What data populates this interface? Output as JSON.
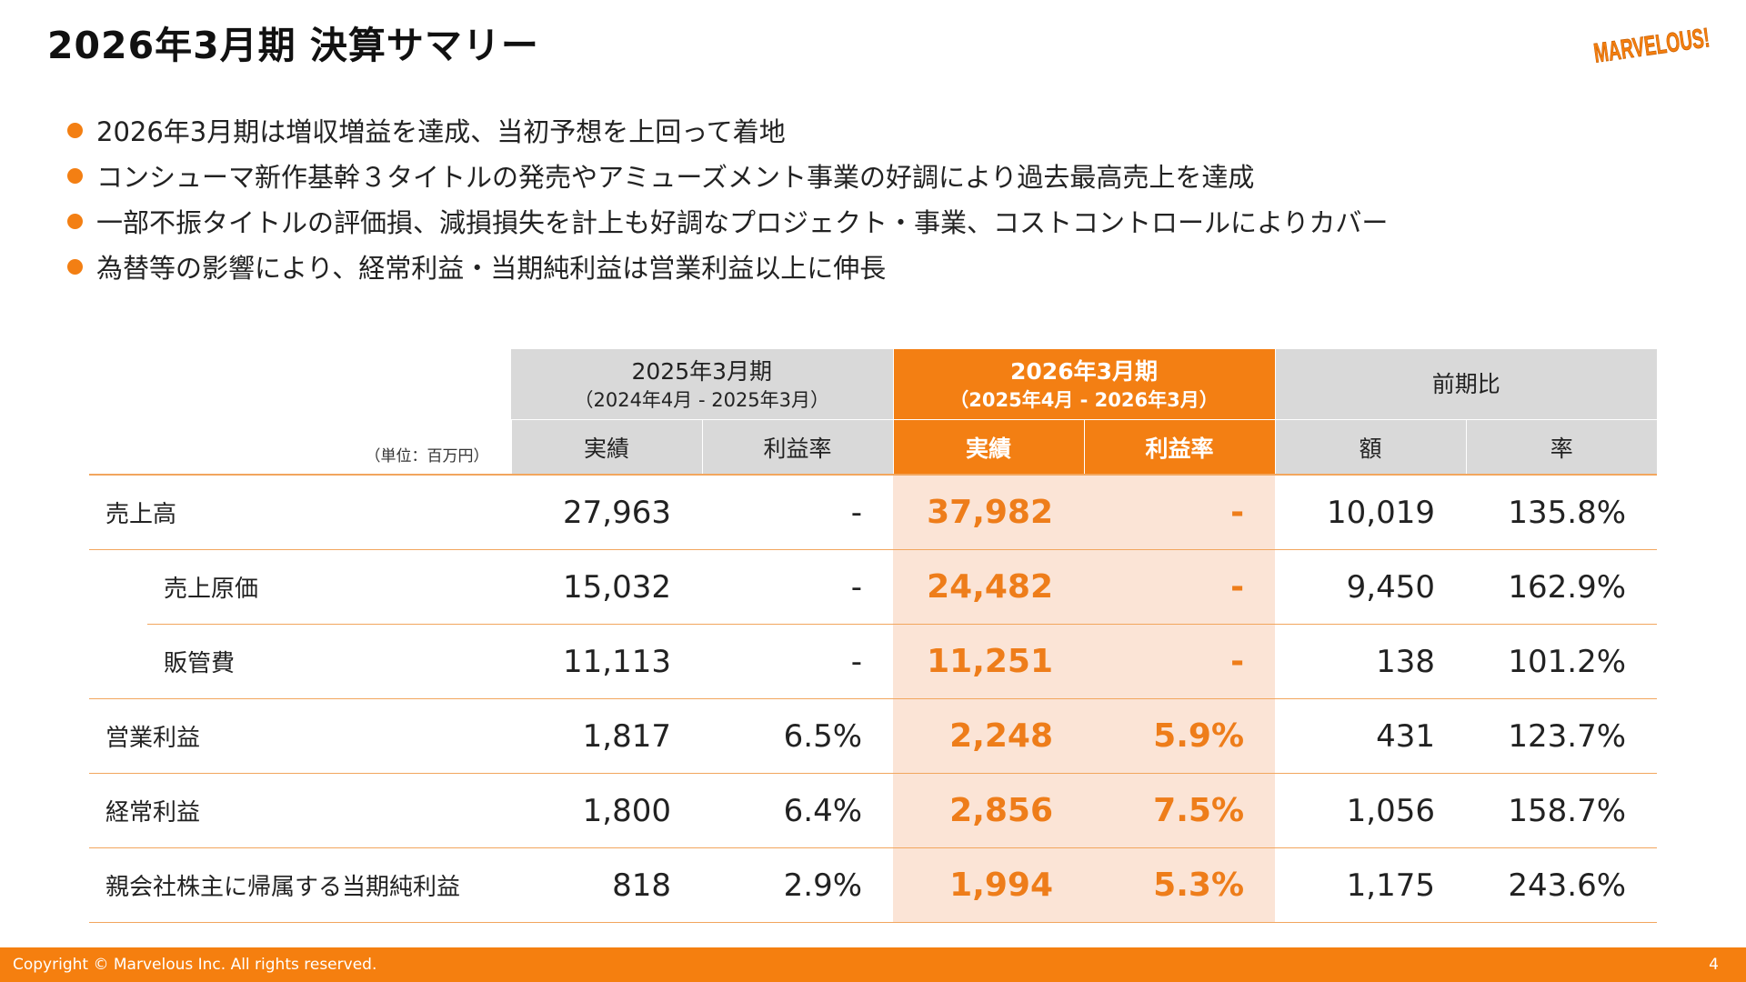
{
  "title": "2026年3月期 決算サマリー",
  "logo_text": "MARVELOUS!",
  "colors": {
    "accent": "#f37f13",
    "accent_light": "#fbe4d6",
    "header_gray": "#d9d9d9",
    "line": "#f2a65e"
  },
  "bullets": [
    "2026年3月期は増収増益を達成、当初予想を上回って着地",
    "コンシューマ新作基幹３タイトルの発売やアミューズメント事業の好調により過去最高売上を達成",
    "一部不振タイトルの評価損、減損損失を計上も好調なプロジェクト・事業、コストコントロールによりカバー",
    "為替等の影響により、経常利益・当期純利益は営業利益以上に伸長"
  ],
  "table": {
    "unit": "（単位：百万円）",
    "periods": {
      "prev": {
        "title": "2025年3月期",
        "range": "（2024年4月 - 2025年3月）"
      },
      "current": {
        "title": "2026年3月期",
        "range": "（2025年4月 - 2026年3月）"
      },
      "compare": {
        "title": "前期比"
      }
    },
    "subheaders": {
      "prev_actual": "実績",
      "prev_margin": "利益率",
      "cur_actual": "実績",
      "cur_margin": "利益率",
      "diff_amount": "額",
      "diff_rate": "率"
    },
    "rows": [
      {
        "label": "売上高",
        "prev_actual": "27,963",
        "prev_margin": "-",
        "cur_actual": "37,982",
        "cur_margin": "-",
        "diff_amount": "10,019",
        "diff_rate": "135.8%"
      },
      {
        "label": "売上原価",
        "prev_actual": "15,032",
        "prev_margin": "-",
        "cur_actual": "24,482",
        "cur_margin": "-",
        "diff_amount": "9,450",
        "diff_rate": "162.9%"
      },
      {
        "label": "販管費",
        "prev_actual": "11,113",
        "prev_margin": "-",
        "cur_actual": "11,251",
        "cur_margin": "-",
        "diff_amount": "138",
        "diff_rate": "101.2%"
      },
      {
        "label": "営業利益",
        "prev_actual": "1,817",
        "prev_margin": "6.5%",
        "cur_actual": "2,248",
        "cur_margin": "5.9%",
        "diff_amount": "431",
        "diff_rate": "123.7%"
      },
      {
        "label": "経常利益",
        "prev_actual": "1,800",
        "prev_margin": "6.4%",
        "cur_actual": "2,856",
        "cur_margin": "7.5%",
        "diff_amount": "1,056",
        "diff_rate": "158.7%"
      },
      {
        "label": "親会社株主に帰属する当期純利益",
        "prev_actual": "818",
        "prev_margin": "2.9%",
        "cur_actual": "1,994",
        "cur_margin": "5.3%",
        "diff_amount": "1,175",
        "diff_rate": "243.6%"
      }
    ]
  },
  "footer": {
    "copyright": "Copyright © Marvelous Inc. All rights reserved.",
    "page": "4"
  }
}
